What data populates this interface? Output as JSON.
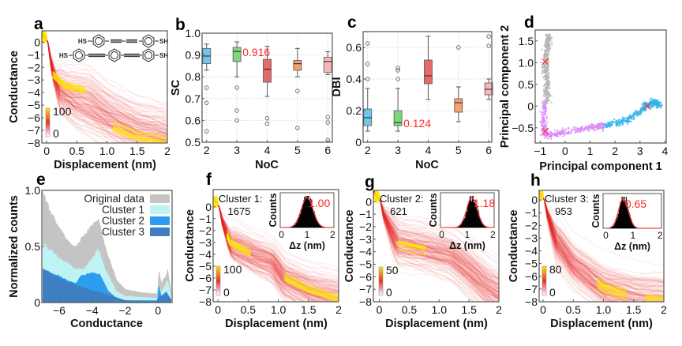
{
  "chart_data": [
    {
      "id": "a",
      "panel_label": "a",
      "type": "heatmap",
      "xlabel": "Displacement (nm)",
      "ylabel": "Conductance",
      "xlim": [
        -0.08,
        2
      ],
      "ylim": [
        -8,
        0.9
      ],
      "xticks": [
        0,
        0.5,
        1.0,
        1.5,
        2
      ],
      "xtick_labels": [
        "0",
        "0.5",
        "1.0",
        "1.5",
        "2"
      ],
      "yticks": [
        0,
        -1,
        -2,
        -3,
        -4,
        -5,
        -6,
        -7,
        -8
      ],
      "ytick_labels": [
        "0",
        "−1",
        "−2",
        "−3",
        "−4",
        "−5",
        "−6",
        "−7",
        "−8"
      ],
      "colorbar": {
        "min": 0,
        "max": 100,
        "min_label": "0",
        "max_label": "100"
      },
      "molecule_labels": {
        "thiol_left": "HS",
        "thiol_right": "SH"
      },
      "density_ridges": [
        [
          [
            0.02,
            0
          ],
          [
            0.1,
            -2.6
          ],
          [
            0.3,
            -3.5
          ],
          [
            0.7,
            -3.9
          ],
          [
            1.0,
            -5.2
          ],
          [
            1.5,
            -6.7
          ],
          [
            2,
            -7.5
          ]
        ],
        [
          [
            0.02,
            -0.5
          ],
          [
            0.2,
            -4.2
          ],
          [
            0.5,
            -5.4
          ],
          [
            1.0,
            -6.5
          ],
          [
            1.5,
            -7.4
          ],
          [
            2,
            -7.9
          ]
        ]
      ],
      "peak_segments": [
        [
          0,
          0.1,
          0.65
        ],
        [
          1,
          1.1,
          2.0
        ]
      ]
    },
    {
      "id": "b",
      "panel_label": "b",
      "type": "box",
      "xlabel": "NoC",
      "ylabel": "SC",
      "xlim": [
        1.85,
        6.15
      ],
      "ylim": [
        0.5,
        1.0
      ],
      "categories": [
        "2",
        "3",
        "4",
        "5",
        "6"
      ],
      "yticks": [
        0.5,
        0.6,
        0.7,
        0.8,
        0.9,
        1.0
      ],
      "ytick_labels": [
        "0.5",
        "0.6",
        "0.7",
        "0.8",
        "0.9",
        "1.0"
      ],
      "grid": true,
      "boxes": [
        {
          "x": 2,
          "min": 0.83,
          "q1": 0.86,
          "median": 0.895,
          "q3": 0.93,
          "max": 0.95,
          "outliers": [
            0.75,
            0.68,
            0.55
          ],
          "color": "#72c6ea"
        },
        {
          "x": 3,
          "min": 0.8,
          "q1": 0.87,
          "median": 0.916,
          "q3": 0.935,
          "max": 0.96,
          "outliers": [
            0.75,
            0.645,
            0.6
          ],
          "color": "#7ed67e"
        },
        {
          "x": 4,
          "min": 0.71,
          "q1": 0.775,
          "median": 0.835,
          "q3": 0.88,
          "max": 0.94,
          "outliers": [
            0.61,
            0.585
          ],
          "color": "#e56b6b"
        },
        {
          "x": 5,
          "min": 0.8,
          "q1": 0.83,
          "median": 0.86,
          "q3": 0.875,
          "max": 0.93,
          "outliers": [
            0.735,
            0.565
          ],
          "color": "#f4a070"
        },
        {
          "x": 6,
          "min": 0.81,
          "q1": 0.82,
          "median": 0.87,
          "q3": 0.89,
          "max": 0.915,
          "outliers": [
            0.615,
            0.59,
            0.51
          ],
          "color": "#f7b6bd"
        }
      ],
      "annotation": {
        "text": "0.916",
        "x": 3,
        "y": 0.916,
        "color": "#ff2a2a"
      }
    },
    {
      "id": "c",
      "panel_label": "c",
      "type": "box",
      "xlabel": "NoC",
      "ylabel": "DBI",
      "xlim": [
        1.85,
        6.1
      ],
      "ylim": [
        0,
        0.7
      ],
      "categories": [
        "2",
        "3",
        "4",
        "5",
        "6"
      ],
      "yticks": [
        0,
        0.2,
        0.4,
        0.6
      ],
      "ytick_labels": [
        "0",
        "0.2",
        "0.4",
        "0.6"
      ],
      "grid": true,
      "boxes": [
        {
          "x": 2,
          "min": 0.07,
          "q1": 0.105,
          "median": 0.155,
          "q3": 0.21,
          "max": 0.34,
          "outliers": [
            0.625,
            0.495,
            0.4
          ],
          "color": "#72c6ea"
        },
        {
          "x": 3,
          "min": 0.07,
          "q1": 0.105,
          "median": 0.124,
          "q3": 0.2,
          "max": 0.34,
          "outliers": [
            0.47,
            0.455,
            0.4
          ],
          "color": "#7ed67e"
        },
        {
          "x": 4,
          "min": 0.27,
          "q1": 0.37,
          "median": 0.42,
          "q3": 0.52,
          "max": 0.67,
          "outliers": [],
          "color": "#e56b6b"
        },
        {
          "x": 5,
          "min": 0.13,
          "q1": 0.19,
          "median": 0.25,
          "q3": 0.275,
          "max": 0.35,
          "outliers": [
            0.6
          ],
          "color": "#f4a070"
        },
        {
          "x": 6,
          "min": 0.27,
          "q1": 0.3,
          "median": 0.335,
          "q3": 0.375,
          "max": 0.4,
          "outliers": [
            0.67,
            0.61
          ],
          "color": "#f7b6bd"
        }
      ],
      "annotation": {
        "text": "0.124",
        "x": 3,
        "y": 0.124,
        "color": "#ff2a2a"
      }
    },
    {
      "id": "d",
      "panel_label": "d",
      "type": "scatter",
      "xlabel": "Principal component 1",
      "ylabel": "Principal component 2",
      "xlim": [
        -1.2,
        4.05
      ],
      "ylim": [
        -0.85,
        1.75
      ],
      "xticks": [
        -1,
        0,
        1,
        2,
        3,
        4
      ],
      "xtick_labels": [
        "−1",
        "0",
        "1",
        "2",
        "3",
        "4"
      ],
      "yticks": [
        -0.5,
        0,
        0.5,
        1.0,
        1.5
      ],
      "ytick_labels": [
        "−0.5",
        "0",
        "0.5",
        "1.0",
        "1.5"
      ],
      "clusters": [
        {
          "color": "#b4b4b4",
          "trend": [
            [
              -0.7,
              0.1
            ],
            [
              -0.75,
              0.6
            ],
            [
              -0.8,
              1.0
            ],
            [
              -0.72,
              1.4
            ],
            [
              -0.65,
              1.62
            ]
          ],
          "centroid": [
            -0.8,
            1.02
          ]
        },
        {
          "color": "#d98af5",
          "trend": [
            [
              -0.8,
              0.1
            ],
            [
              -0.85,
              -0.4
            ],
            [
              -0.8,
              -0.68
            ],
            [
              0,
              -0.6
            ],
            [
              1.0,
              -0.5
            ],
            [
              1.6,
              -0.45
            ]
          ],
          "centroid": [
            -0.8,
            -0.58
          ]
        },
        {
          "color": "#33b5ea",
          "trend": [
            [
              1.6,
              -0.45
            ],
            [
              2.4,
              -0.35
            ],
            [
              3.0,
              -0.12
            ],
            [
              3.4,
              0.05
            ],
            [
              3.6,
              0.1
            ],
            [
              3.8,
              0.0
            ]
          ],
          "centroid": [
            3.3,
            0.0
          ]
        }
      ],
      "centroid_marker_color": "#ff3030"
    },
    {
      "id": "e",
      "panel_label": "e",
      "type": "area",
      "xlabel": "Conductance",
      "ylabel": "Normalized counts",
      "xlim": [
        -7.05,
        0.85
      ],
      "ylim": [
        0,
        1
      ],
      "xticks": [
        -6,
        -4,
        -2,
        0
      ],
      "xtick_labels": [
        "−6",
        "−4",
        "−2",
        "0"
      ],
      "yticks": [
        0,
        0.5,
        1.0
      ],
      "ytick_labels": [
        "0",
        "0.5",
        "1.0"
      ],
      "legend_position": "top-right",
      "series": [
        {
          "name": "Original data",
          "color": "#c4c4c4",
          "x": [
            -7,
            -6.5,
            -6,
            -5.5,
            -5,
            -4.5,
            -4,
            -3.6,
            -3.2,
            -2.5,
            -2,
            -1,
            -0.05,
            0.05,
            0.2,
            0.5,
            0.6,
            0.8
          ],
          "y": [
            1.0,
            0.8,
            0.68,
            0.55,
            0.5,
            0.6,
            0.7,
            0.75,
            0.5,
            0.2,
            0.12,
            0.09,
            0.08,
            0.3,
            0.18,
            0.25,
            0.3,
            0.1
          ]
        },
        {
          "name": "Cluster 1",
          "color": "#bff2f4",
          "x": [
            -7,
            -6,
            -5,
            -4.5,
            -4,
            -3.6,
            -3.2,
            -2.5,
            -2,
            -1,
            -0.05,
            0.05,
            0.2,
            0.6,
            0.8
          ],
          "y": [
            0.53,
            0.4,
            0.3,
            0.3,
            0.4,
            0.48,
            0.3,
            0.1,
            0.06,
            0.05,
            0.04,
            0.18,
            0.1,
            0.2,
            0.05
          ]
        },
        {
          "name": "Cluster 2",
          "color": "#2e9cf0",
          "x": [
            -7,
            -6,
            -5.5,
            -5,
            -4.7,
            -4,
            -3.5,
            -3,
            -2.5,
            -2,
            -0.05,
            0.05,
            0.2,
            0.5,
            0.8
          ],
          "y": [
            0.3,
            0.24,
            0.2,
            0.17,
            0.24,
            0.27,
            0.25,
            0.1,
            0.04,
            0.02,
            0.02,
            0.17,
            0.06,
            0.1,
            0.03
          ]
        },
        {
          "name": "Cluster 3",
          "color": "#3d7fc0",
          "x": [
            -7,
            -6,
            -5,
            -4,
            -3,
            -2,
            -0.05,
            0.05,
            0.5,
            0.8
          ],
          "y": [
            0.3,
            0.22,
            0.16,
            0.11,
            0.07,
            0.02,
            0.01,
            0.05,
            0.08,
            0.02
          ]
        }
      ]
    },
    {
      "id": "f",
      "panel_label": "f",
      "type": "heatmap",
      "xlabel": "Displacement (nm)",
      "ylabel": "Conductance",
      "xlim": [
        -0.08,
        2
      ],
      "ylim": [
        -8,
        1.45
      ],
      "xticks": [
        0,
        0.5,
        1.0,
        1.5,
        2
      ],
      "xtick_labels": [
        "0",
        "0.5",
        "1.0",
        "1.5",
        "2"
      ],
      "yticks": [
        0,
        -1,
        -2,
        -3,
        -4,
        -5,
        -6,
        -7,
        -8
      ],
      "ytick_labels": [
        "0",
        "−1",
        "−2",
        "−3",
        "−4",
        "−5",
        "−6",
        "−7",
        "−8"
      ],
      "colorbar": {
        "min": 0,
        "max": 100,
        "min_label": "0",
        "max_label": "100"
      },
      "cluster_label": "Cluster 1:",
      "trace_count": "1675",
      "density_ridges": [
        [
          [
            0.02,
            -0.5
          ],
          [
            0.2,
            -3.0
          ],
          [
            0.6,
            -4.0
          ],
          [
            0.9,
            -4.6
          ],
          [
            1.1,
            -6.0
          ],
          [
            1.5,
            -7.0
          ],
          [
            2,
            -7.8
          ]
        ]
      ],
      "peak_segments": [
        [
          0,
          0.15,
          0.55
        ],
        [
          0,
          1.1,
          2.0
        ]
      ],
      "inset": {
        "xlabel": "Δz (nm)",
        "ylabel": "Counts",
        "xlim": [
          -0.05,
          2.05
        ],
        "xticks": [
          0,
          1,
          2
        ],
        "xtick_labels": [
          "0",
          "1",
          "2"
        ],
        "peak": 1.0,
        "peak_label": "1.00",
        "width": 0.22
      }
    },
    {
      "id": "g",
      "panel_label": "g",
      "type": "heatmap",
      "xlabel": "Displacement (nm)",
      "ylabel": "Conductance",
      "xlim": [
        -0.1,
        2
      ],
      "ylim": [
        -8,
        0.9
      ],
      "xticks": [
        0,
        0.5,
        1.0,
        1.5,
        2
      ],
      "xtick_labels": [
        "0",
        "0.5",
        "1.0",
        "1.5",
        "2"
      ],
      "yticks": [
        0,
        -1,
        -2,
        -3,
        -4,
        -5,
        -6,
        -7,
        -8
      ],
      "ytick_labels": [
        "0",
        "−1",
        "−2",
        "−3",
        "−4",
        "−5",
        "−6",
        "−7",
        "−8"
      ],
      "colorbar": {
        "min": 0,
        "max": 50,
        "min_label": "0",
        "max_label": "50"
      },
      "cluster_label": "Cluster 2:",
      "trace_count": "621",
      "density_ridges": [
        [
          [
            0.02,
            -0.5
          ],
          [
            0.3,
            -3.3
          ],
          [
            0.8,
            -3.8
          ],
          [
            1.2,
            -4.3
          ],
          [
            1.5,
            -5.5
          ],
          [
            1.8,
            -6.8
          ],
          [
            2,
            -7.5
          ]
        ]
      ],
      "peak_segments": [
        [
          0,
          0.3,
          0.8
        ]
      ],
      "inset": {
        "xlabel": "Δz (nm)",
        "ylabel": "Counts",
        "xlim": [
          -0.05,
          2.05
        ],
        "xticks": [
          0,
          1,
          2
        ],
        "xtick_labels": [
          "0",
          "1",
          "2"
        ],
        "peak": 1.18,
        "peak_label": "1.18",
        "width": 0.2
      }
    },
    {
      "id": "h",
      "panel_label": "h",
      "type": "heatmap",
      "xlabel": "Displacement (nm)",
      "ylabel": "Conductance",
      "xlim": [
        -0.065,
        2
      ],
      "ylim": [
        -8,
        0.75
      ],
      "xticks": [
        0,
        0.5,
        1.0,
        1.5,
        2
      ],
      "xtick_labels": [
        "0",
        "0.5",
        "1.0",
        "1.5",
        "2"
      ],
      "yticks": [
        0,
        -1,
        -2,
        -3,
        -4,
        -5,
        -6,
        -7,
        -8
      ],
      "ytick_labels": [
        "0",
        "−1",
        "−2",
        "−3",
        "−4",
        "−5",
        "−6",
        "−7",
        "−8"
      ],
      "colorbar": {
        "min": 0,
        "max": 80,
        "min_label": "0",
        "max_label": "80"
      },
      "cluster_label": "Cluster 3:",
      "trace_count": "953",
      "density_ridges": [
        [
          [
            0.02,
            -0.3
          ],
          [
            0.2,
            -3.0
          ],
          [
            0.5,
            -5.0
          ],
          [
            1.0,
            -6.8
          ],
          [
            1.5,
            -7.6
          ],
          [
            2,
            -7.9
          ]
        ]
      ],
      "peak_segments": [
        [
          0,
          0.9,
          1.4
        ],
        [
          0,
          1.7,
          2.0
        ]
      ],
      "inset": {
        "xlabel": "Δz (nm)",
        "ylabel": "Counts",
        "xlim": [
          -0.1,
          2.05
        ],
        "xticks": [
          0,
          1,
          2
        ],
        "xtick_labels": [
          "0",
          "1",
          "2"
        ],
        "peak": 0.65,
        "peak_label": "0.65",
        "width": 0.17
      }
    }
  ]
}
